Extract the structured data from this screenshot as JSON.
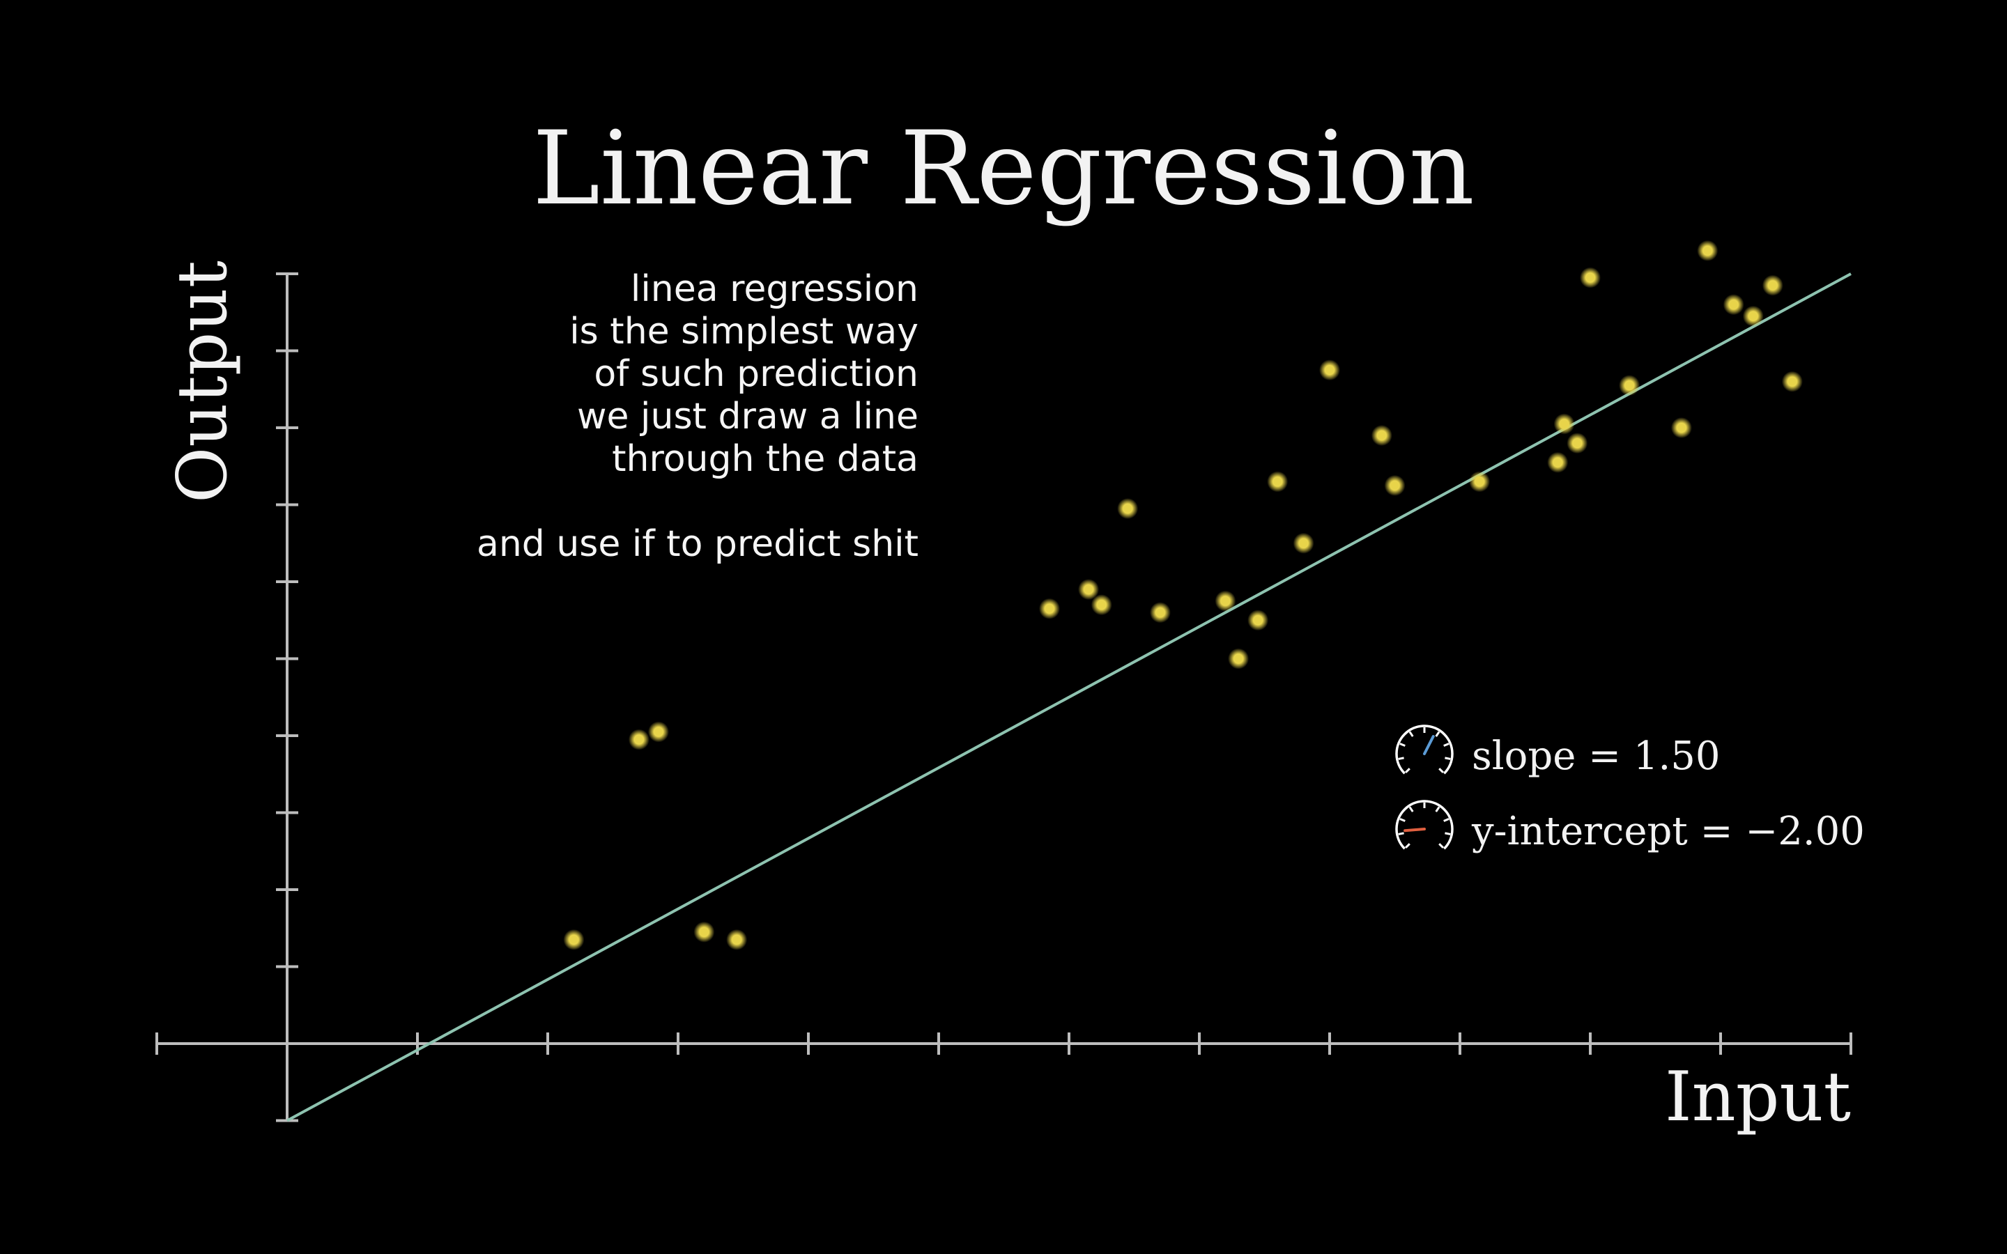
{
  "chart_data": {
    "type": "scatter",
    "title": "Linear Regression",
    "xlabel": "Input",
    "ylabel": "Output",
    "xlim": [
      -1,
      12
    ],
    "ylim": [
      -1,
      10
    ],
    "grid": false,
    "x": [
      2.2,
      2.7,
      2.85,
      3.2,
      3.45,
      5.85,
      6.15,
      6.25,
      6.45,
      6.7,
      7.2,
      7.3,
      7.45,
      7.6,
      7.8,
      8.0,
      8.4,
      8.5,
      9.15,
      9.75,
      9.8,
      9.9,
      10.0,
      10.3,
      10.7,
      10.9,
      11.1,
      11.25,
      11.4,
      11.55
    ],
    "y": [
      1.35,
      3.95,
      4.05,
      1.45,
      1.35,
      5.65,
      5.9,
      5.7,
      6.95,
      5.6,
      5.75,
      5.0,
      5.5,
      7.3,
      6.5,
      8.75,
      7.9,
      7.25,
      7.3,
      7.55,
      8.05,
      7.8,
      9.95,
      8.55,
      8.0,
      10.3,
      9.6,
      9.45,
      9.85,
      8.6
    ],
    "regression": {
      "slope": 1.5,
      "intercept": -2.0,
      "color": "#8ec3b0"
    },
    "point_color": "#e8d44a"
  },
  "annotation": {
    "lines": [
      "linea regression",
      "is the simplest way",
      "of such prediction",
      "we just draw a line",
      "through the data",
      "",
      "and use if to predict shit"
    ]
  },
  "params": {
    "slope": {
      "label": "slope = 1.50",
      "icon": "gauge-icon",
      "needle_color": "#5b9bd5",
      "level": 0.6
    },
    "intercept": {
      "label": "y-intercept = −2.00",
      "icon": "gauge-icon",
      "needle_color": "#e06040",
      "level": 0.15
    }
  }
}
